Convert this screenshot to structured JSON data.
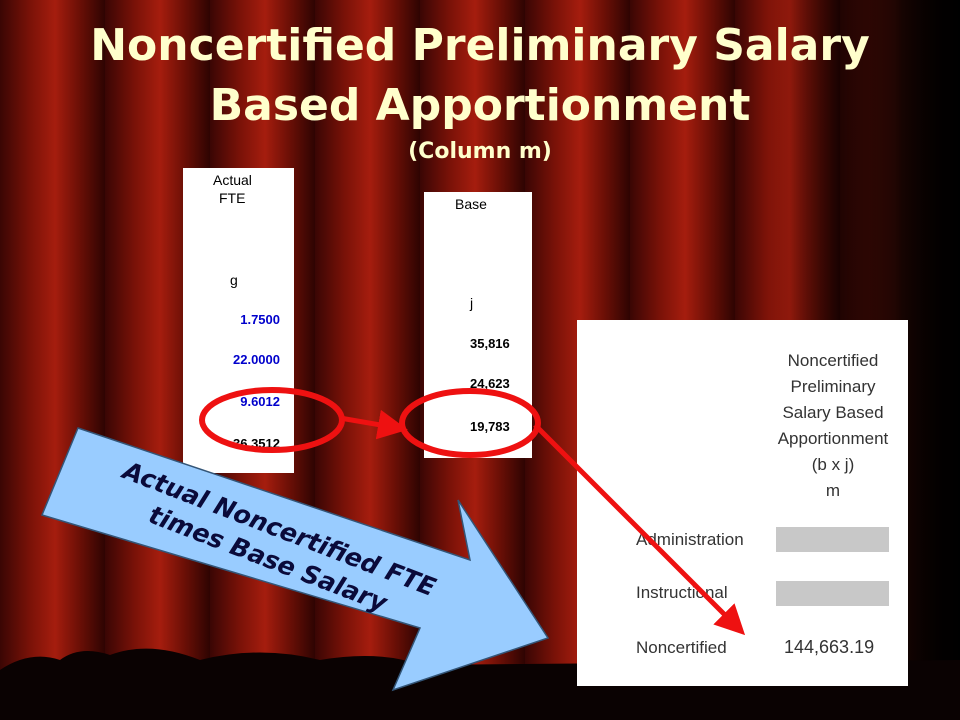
{
  "title": {
    "lines": [
      "Noncertified Preliminary Salary",
      "Based Apportionment"
    ],
    "subtitle": "(Column m)"
  },
  "panel_fte": {
    "header": [
      "Actual",
      "FTE"
    ],
    "column": "g",
    "values": [
      "1.7500",
      "22.0000",
      "9.6012",
      "36.3512"
    ]
  },
  "panel_base": {
    "header": "Base",
    "column": "j",
    "values": [
      "35,816",
      "24,623",
      "19,783"
    ]
  },
  "panel_result": {
    "header": [
      "Noncertified",
      "Preliminary",
      "Salary Based",
      "Apportionment",
      "(b x j)",
      "m"
    ],
    "rows": [
      {
        "label": "Administration"
      },
      {
        "label": "Instructional"
      },
      {
        "label": "Noncertified",
        "value": "144,663.19"
      }
    ]
  },
  "callout": {
    "lines": [
      "Actual Noncertified FTE",
      "times Base Salary"
    ]
  }
}
